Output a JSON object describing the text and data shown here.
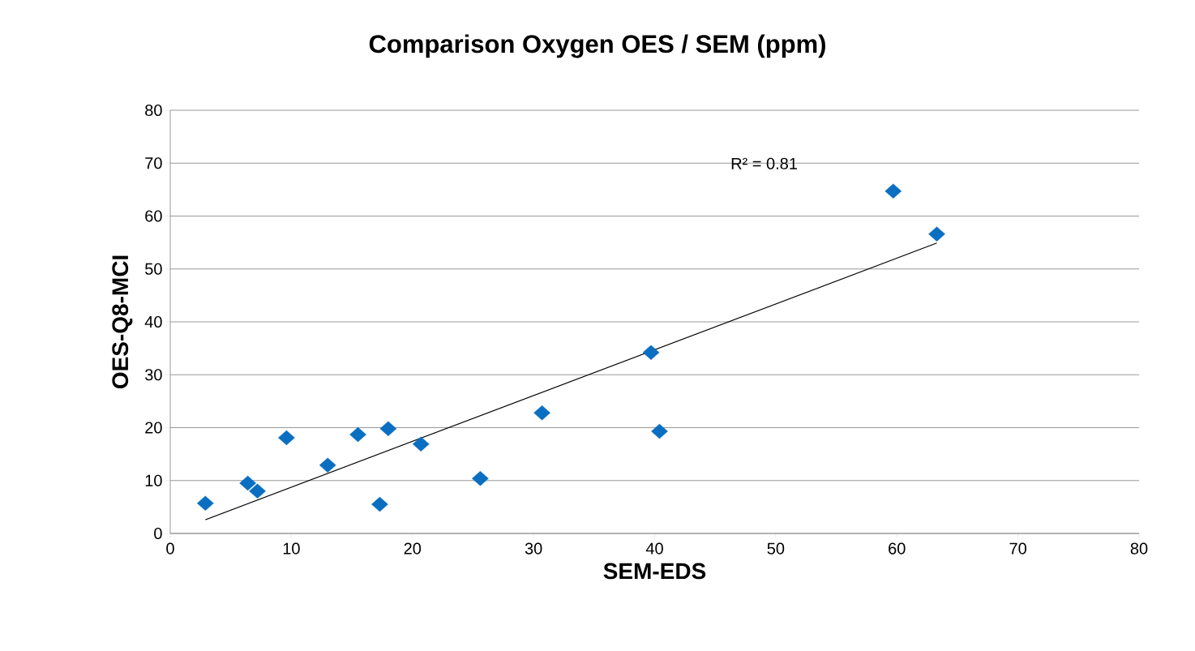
{
  "chart_data": {
    "type": "scatter",
    "title": "Comparison Oxygen OES / SEM (ppm)",
    "xlabel": "SEM-EDS",
    "ylabel": "OES-Q8-MCI",
    "series": [
      {
        "color": "#0b6fc1",
        "marker": "diamond",
        "x": [
          2.9,
          6.4,
          7.2,
          9.6,
          13.0,
          15.5,
          17.3,
          18.0,
          20.7,
          25.6,
          30.7,
          39.7,
          40.4,
          59.7,
          63.3
        ],
        "values": [
          5.7,
          9.5,
          8.0,
          18.1,
          12.9,
          18.7,
          5.5,
          19.8,
          16.9,
          10.4,
          22.8,
          34.2,
          19.3,
          64.7,
          56.6
        ]
      },
      {
        "type": "line",
        "color": "#000000",
        "marker": "none",
        "x": [
          2.9,
          63.3
        ],
        "values": [
          2.6,
          54.9
        ]
      }
    ],
    "annotations": [
      "R² = 0.81"
    ],
    "xlim": [
      0,
      80
    ],
    "ylim": [
      0,
      80
    ],
    "xticks": [
      0,
      10,
      20,
      30,
      40,
      50,
      60,
      70,
      80
    ],
    "yticks": [
      0,
      10,
      20,
      30,
      40,
      50,
      60,
      70,
      80
    ],
    "grid": "y"
  }
}
